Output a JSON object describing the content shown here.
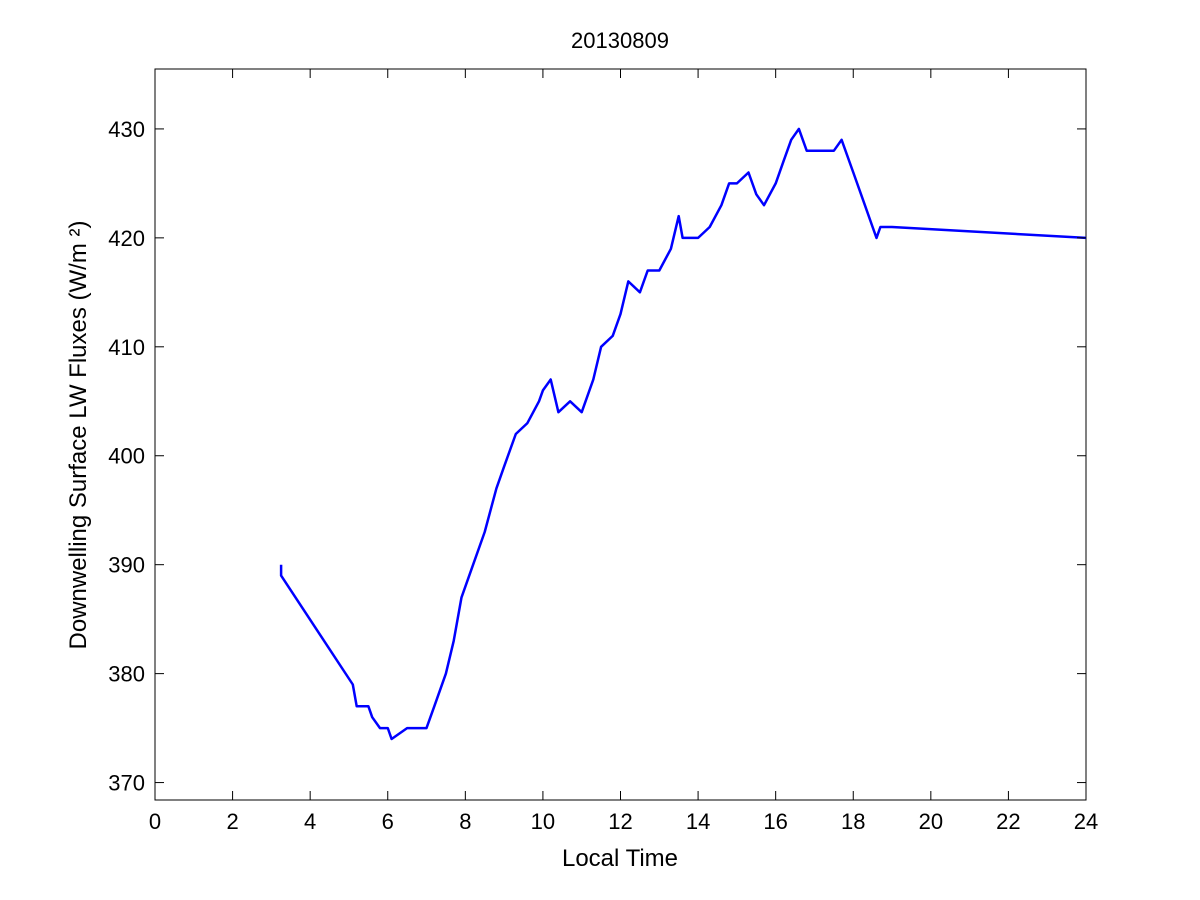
{
  "chart_data": {
    "type": "line",
    "title": "20130809",
    "xlabel": "Local Time",
    "ylabel": "Downwelling Surface LW Fluxes (W/m ²)",
    "xlim": [
      0,
      24
    ],
    "ylim": [
      368.4,
      435.5
    ],
    "xticks": [
      0,
      2,
      4,
      6,
      8,
      10,
      12,
      14,
      16,
      18,
      20,
      22,
      24
    ],
    "yticks": [
      370,
      380,
      390,
      400,
      410,
      420,
      430
    ],
    "grid": false,
    "line_color": "#0000ff",
    "series": [
      {
        "x": [
          3.25,
          3.25,
          5.1,
          5.2,
          5.5,
          5.6,
          5.8,
          6.0,
          6.1,
          6.5,
          7.0,
          7.2,
          7.5,
          7.7,
          7.9,
          8.2,
          8.5,
          8.8,
          9.0,
          9.3,
          9.6,
          9.9,
          10.0,
          10.2,
          10.4,
          10.7,
          11.0,
          11.3,
          11.5,
          11.8,
          12.0,
          12.2,
          12.5,
          12.7,
          13.0,
          13.3,
          13.5,
          13.6,
          14.0,
          14.3,
          14.6,
          14.8,
          15.0,
          15.3,
          15.5,
          15.7,
          16.0,
          16.2,
          16.4,
          16.6,
          16.8,
          17.5,
          17.7,
          18.0,
          18.3,
          18.5,
          18.6,
          18.7,
          19.0,
          24.0
        ],
        "y": [
          390,
          389,
          379,
          377,
          377,
          376,
          375,
          375,
          374,
          375,
          375,
          377,
          380,
          383,
          387,
          390,
          393,
          397,
          399,
          402,
          403,
          405,
          406,
          407,
          404,
          405,
          404,
          407,
          410,
          411,
          413,
          416,
          415,
          417,
          417,
          419,
          422,
          420,
          420,
          421,
          423,
          425,
          425,
          426,
          424,
          423,
          425,
          427,
          429,
          430,
          428,
          428,
          429,
          426,
          423,
          421,
          420,
          421,
          421,
          420
        ]
      }
    ]
  }
}
